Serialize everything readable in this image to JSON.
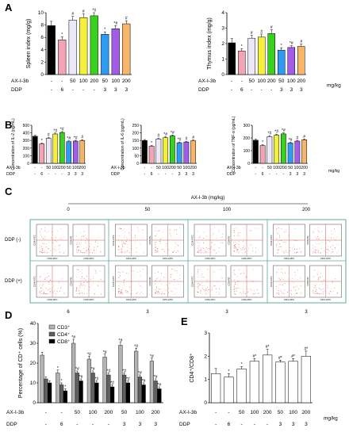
{
  "panels": {
    "A": "A",
    "B": "B",
    "C": "C",
    "D": "D",
    "E": "E"
  },
  "row_labels": {
    "ax": "AX-Ⅰ-3b",
    "ddp": "DDP",
    "unit": "mg/kg"
  },
  "chart_data": [
    {
      "id": "A1",
      "type": "bar",
      "ylabel": "Spleen index (mg/g)",
      "ylim": [
        0,
        10
      ],
      "yticks": [
        0,
        2,
        4,
        6,
        8,
        10
      ],
      "ax_row": [
        "-",
        "-",
        "50",
        "100",
        "200",
        "50",
        "100",
        "200"
      ],
      "ddp_row": [
        "-",
        "6",
        "-",
        "-",
        "-",
        "3",
        "3",
        "3"
      ],
      "values": [
        7.9,
        5.6,
        8.8,
        9.2,
        9.5,
        6.5,
        7.4,
        8.2
      ],
      "errors": [
        0.7,
        0.5,
        0.6,
        0.6,
        0.5,
        0.4,
        0.5,
        0.5
      ],
      "colors": [
        "#000000",
        "#f4a3b5",
        "#ece8f7",
        "#f4ee3c",
        "#38d11f",
        "#2e9bf2",
        "#a25ce8",
        "#f7b56a"
      ],
      "marks": [
        "",
        "*",
        "#",
        "#",
        "*#",
        "*",
        "*#",
        "#"
      ]
    },
    {
      "id": "A2",
      "type": "bar",
      "ylabel": "Thymus index (mg/g)",
      "ylim": [
        0,
        4
      ],
      "yticks": [
        0,
        1,
        2,
        3,
        4
      ],
      "ax_row": [
        "-",
        "-",
        "50",
        "100",
        "200",
        "50",
        "100",
        "200"
      ],
      "ddp_row": [
        "-",
        "6",
        "-",
        "-",
        "-",
        "3",
        "3",
        "3"
      ],
      "unit": "mg/kg",
      "values": [
        2.05,
        1.52,
        2.35,
        2.42,
        2.65,
        1.58,
        1.75,
        1.82
      ],
      "errors": [
        0.28,
        0.15,
        0.18,
        0.2,
        0.25,
        0.15,
        0.12,
        0.15
      ],
      "colors": [
        "#000000",
        "#f4a3b5",
        "#ece8f7",
        "#f4ee3c",
        "#38d11f",
        "#2e9bf2",
        "#a25ce8",
        "#f7b56a"
      ],
      "marks": [
        "",
        "*",
        "#",
        "#",
        "#",
        "*",
        "*#",
        "#"
      ]
    },
    {
      "id": "B1",
      "type": "bar",
      "ylabel": "Concentration of IL-2 (pg/mL)",
      "ylim": [
        0,
        500
      ],
      "yticks": [
        0,
        100,
        200,
        300,
        400,
        500
      ],
      "ax_row": [
        "-",
        "-",
        "50",
        "100",
        "200",
        "50",
        "100",
        "200"
      ],
      "ddp_row": [
        "-",
        "6",
        "-",
        "-",
        "-",
        "3",
        "3",
        "3"
      ],
      "values": [
        355,
        255,
        330,
        385,
        405,
        285,
        292,
        300
      ],
      "errors": [
        12,
        10,
        12,
        12,
        12,
        10,
        10,
        10
      ],
      "colors": [
        "#000000",
        "#f4a3b5",
        "#ece8f7",
        "#f4ee3c",
        "#38d11f",
        "#2e9bf2",
        "#a25ce8",
        "#f7b56a"
      ],
      "marks": [
        "",
        "*",
        "#",
        "*#",
        "*#",
        "*#",
        "*#",
        "#"
      ]
    },
    {
      "id": "B2",
      "type": "bar",
      "ylabel": "Concentration of IL-6 (pg/mL)",
      "ylim": [
        0,
        250
      ],
      "yticks": [
        0,
        50,
        100,
        150,
        200,
        250
      ],
      "ax_row": [
        "-",
        "-",
        "50",
        "100",
        "200",
        "50",
        "100",
        "200"
      ],
      "ddp_row": [
        "-",
        "6",
        "-",
        "-",
        "-",
        "3",
        "3",
        "3"
      ],
      "values": [
        150,
        112,
        160,
        168,
        180,
        135,
        140,
        148
      ],
      "errors": [
        6,
        5,
        6,
        6,
        6,
        5,
        5,
        5
      ],
      "colors": [
        "#000000",
        "#f4a3b5",
        "#ece8f7",
        "#f4ee3c",
        "#38d11f",
        "#2e9bf2",
        "#a25ce8",
        "#f7b56a"
      ],
      "marks": [
        "",
        "*",
        "#",
        "*#",
        "*#",
        "*#",
        "#",
        "#"
      ]
    },
    {
      "id": "B3",
      "type": "bar",
      "ylabel": "Concentration of TNF-α (pg/mL)",
      "ylim": [
        0,
        300
      ],
      "yticks": [
        0,
        100,
        200,
        300
      ],
      "ax_row": [
        "-",
        "-",
        "50",
        "100",
        "200",
        "50",
        "100",
        "200"
      ],
      "ddp_row": [
        "-",
        "6",
        "-",
        "-",
        "-",
        "3",
        "3",
        "3"
      ],
      "unit": "mg/kg",
      "values": [
        182,
        140,
        210,
        222,
        232,
        160,
        175,
        186
      ],
      "errors": [
        8,
        6,
        8,
        8,
        8,
        6,
        6,
        6
      ],
      "colors": [
        "#000000",
        "#f4a3b5",
        "#ece8f7",
        "#f4ee3c",
        "#38d11f",
        "#2e9bf2",
        "#a25ce8",
        "#f7b56a"
      ],
      "marks": [
        "",
        "*",
        "*#",
        "*#",
        "*#",
        "*#",
        "#",
        "#"
      ]
    },
    {
      "id": "D",
      "type": "bar",
      "ylabel": "Percentage of CD⁺ cells (%)",
      "ylim": [
        0,
        40
      ],
      "yticks": [
        0,
        10,
        20,
        30,
        40
      ],
      "ax_row": [
        "-",
        "-",
        "50",
        "100",
        "200",
        "50",
        "100",
        "200"
      ],
      "ddp_row": [
        "-",
        "6",
        "-",
        "-",
        "-",
        "3",
        "3",
        "3"
      ],
      "series": [
        {
          "name": "CD3⁺",
          "color": "#b3b3b3",
          "values": [
            24,
            15,
            30,
            22,
            23,
            29,
            26,
            21
          ],
          "errors": [
            1.5,
            1.5,
            2,
            1.5,
            1.5,
            1.5,
            1.5,
            1.5
          ]
        },
        {
          "name": "CD4⁺",
          "color": "#606060",
          "values": [
            12,
            9,
            15,
            15,
            14,
            14,
            13,
            11
          ],
          "errors": [
            1,
            1,
            1,
            1,
            1,
            1,
            1,
            1
          ]
        },
        {
          "name": "CD8⁺",
          "color": "#000000",
          "values": [
            10,
            6,
            11,
            10,
            8,
            10,
            9,
            7
          ],
          "errors": [
            1,
            1,
            1,
            1,
            1,
            1,
            1,
            1
          ]
        }
      ],
      "marks": [
        "",
        "*",
        "*#",
        "*#",
        "*#",
        "*#",
        "*#",
        "*#"
      ]
    },
    {
      "id": "E",
      "type": "bar",
      "ylabel": "CD4⁺/CD8⁺",
      "ylim": [
        0,
        3
      ],
      "yticks": [
        0,
        1,
        2,
        3
      ],
      "ax_row": [
        "-",
        "-",
        "50",
        "100",
        "200",
        "50",
        "100",
        "200"
      ],
      "ddp_row": [
        "-",
        "6",
        "-",
        "-",
        "-",
        "3",
        "3",
        "3"
      ],
      "unit": "mg/kg",
      "values": [
        1.25,
        1.1,
        1.45,
        1.78,
        2.05,
        1.75,
        1.78,
        2.0
      ],
      "errors": [
        0.22,
        0.15,
        0.1,
        0.12,
        0.25,
        0.08,
        0.12,
        0.22
      ],
      "colors": [
        "#ffffff",
        "#ffffff",
        "#ffffff",
        "#ffffff",
        "#ffffff",
        "#ffffff",
        "#ffffff",
        "#ffffff"
      ],
      "marks": [
        "",
        "*",
        "*",
        "#*",
        "#*",
        "#*",
        "#*",
        "#*"
      ]
    }
  ],
  "flow": {
    "ax_label": "AX-Ⅰ-3b (mg/kg)",
    "doses": [
      "0",
      "50",
      "100",
      "200"
    ],
    "rows": [
      "DDP (-)",
      "DDP (+)"
    ],
    "bottom": [
      "6",
      "3",
      "3",
      "3"
    ],
    "x_axis": "CD3-APC",
    "y_axes": [
      "CD4-FITC",
      "CD8-PE"
    ]
  }
}
